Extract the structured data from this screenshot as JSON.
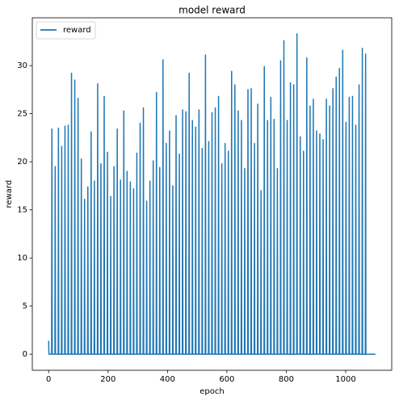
{
  "chart_data": {
    "type": "line",
    "title": "model reward",
    "xlabel": "epoch",
    "ylabel": "reward",
    "xlim": [
      -55,
      1155
    ],
    "xticks": [
      0,
      200,
      400,
      600,
      800,
      1000
    ],
    "ylim": [
      -1.67,
      34.97
    ],
    "yticks": [
      0,
      5,
      10,
      15,
      20,
      25,
      30
    ],
    "legend": "upper left",
    "series": [
      {
        "name": "reward",
        "color": "#1f77b4",
        "x": [
          0,
          1,
          10,
          11,
          12,
          21,
          22,
          23,
          32,
          33,
          34,
          43,
          44,
          45,
          54,
          55,
          56,
          65,
          66,
          67,
          76,
          77,
          78,
          87,
          88,
          89,
          98,
          99,
          100,
          109,
          110,
          111,
          120,
          121,
          122,
          131,
          132,
          133,
          142,
          143,
          144,
          153,
          154,
          155,
          164,
          165,
          166,
          175,
          176,
          177,
          186,
          187,
          188,
          197,
          198,
          199,
          208,
          209,
          210,
          219,
          220,
          221,
          230,
          231,
          232,
          241,
          242,
          243,
          252,
          253,
          254,
          263,
          264,
          265,
          274,
          275,
          276,
          285,
          286,
          287,
          296,
          297,
          298,
          307,
          308,
          309,
          318,
          319,
          320,
          329,
          330,
          331,
          340,
          341,
          342,
          351,
          352,
          353,
          362,
          363,
          364,
          373,
          374,
          375,
          384,
          385,
          386,
          395,
          396,
          397,
          406,
          407,
          408,
          417,
          418,
          419,
          428,
          429,
          430,
          439,
          440,
          441,
          450,
          451,
          452,
          461,
          462,
          463,
          472,
          473,
          474,
          483,
          484,
          485,
          494,
          495,
          496,
          505,
          506,
          507,
          516,
          517,
          518,
          527,
          528,
          529,
          538,
          539,
          540,
          549,
          550,
          551,
          560,
          561,
          562,
          571,
          572,
          573,
          582,
          583,
          584,
          593,
          594,
          595,
          604,
          605,
          606,
          615,
          616,
          617,
          626,
          627,
          628,
          637,
          638,
          639,
          648,
          649,
          650,
          659,
          660,
          661,
          670,
          671,
          672,
          681,
          682,
          683,
          692,
          693,
          694,
          703,
          704,
          705,
          714,
          715,
          716,
          725,
          726,
          727,
          736,
          737,
          738,
          747,
          748,
          749,
          758,
          759,
          760,
          769,
          770,
          771,
          780,
          781,
          782,
          791,
          792,
          793,
          802,
          803,
          804,
          813,
          814,
          815,
          824,
          825,
          826,
          835,
          836,
          837,
          846,
          847,
          848,
          857,
          858,
          859,
          868,
          869,
          870,
          879,
          880,
          881,
          890,
          891,
          892,
          901,
          902,
          903,
          912,
          913,
          914,
          923,
          924,
          925,
          934,
          935,
          936,
          945,
          946,
          947,
          956,
          957,
          958,
          967,
          968,
          969,
          978,
          979,
          980,
          989,
          990,
          991,
          1000,
          1001,
          1002,
          1011,
          1012,
          1013,
          1022,
          1023,
          1024,
          1033,
          1034,
          1035,
          1044,
          1045,
          1046,
          1055,
          1056,
          1057,
          1066,
          1067,
          1068,
          1100
        ],
        "values": [
          1.4,
          0,
          0,
          23.4,
          0,
          0,
          19.5,
          0,
          0,
          23.5,
          0,
          0,
          21.6,
          0,
          0,
          23.7,
          0,
          0,
          23.8,
          0,
          0,
          29.2,
          0,
          0,
          28.5,
          0,
          0,
          26.6,
          0,
          0,
          20.3,
          0,
          0,
          16.1,
          0,
          0,
          17.4,
          0,
          0,
          23.1,
          0,
          0,
          18.0,
          0,
          0,
          28.1,
          0,
          0,
          19.8,
          0,
          0,
          26.8,
          0,
          0,
          21.0,
          0,
          0,
          16.4,
          0,
          0,
          19.5,
          0,
          0,
          23.4,
          0,
          0,
          18.1,
          0,
          0,
          25.3,
          0,
          0,
          19.0,
          0,
          0,
          17.9,
          0,
          0,
          17.2,
          0,
          0,
          20.9,
          0,
          0,
          24.0,
          0,
          0,
          25.6,
          0,
          0,
          15.9,
          0,
          0,
          18.0,
          0,
          0,
          20.1,
          0,
          0,
          27.2,
          0,
          0,
          19.4,
          0,
          0,
          30.6,
          0,
          0,
          21.9,
          0,
          0,
          23.2,
          0,
          0,
          17.5,
          0,
          0,
          24.8,
          0,
          0,
          20.8,
          0,
          0,
          25.4,
          0,
          0,
          25.2,
          0,
          0,
          29.2,
          0,
          0,
          24.3,
          0,
          0,
          23.6,
          0,
          0,
          25.4,
          0,
          0,
          21.4,
          0,
          0,
          31.1,
          0,
          0,
          22.1,
          0,
          0,
          25.1,
          0,
          0,
          25.6,
          0,
          0,
          26.8,
          0,
          0,
          19.8,
          0,
          0,
          21.9,
          0,
          0,
          21.1,
          0,
          0,
          29.4,
          0,
          0,
          28.0,
          0,
          0,
          25.3,
          0,
          0,
          24.3,
          0,
          0,
          19.3,
          0,
          0,
          27.5,
          0,
          0,
          27.6,
          0,
          0,
          21.9,
          0,
          0,
          26.0,
          0,
          0,
          17.0,
          0,
          0,
          29.9,
          0,
          0,
          24.3,
          0,
          0,
          26.7,
          0,
          0,
          24.4,
          0,
          0,
          19.3,
          0,
          0,
          30.5,
          0,
          0,
          32.6,
          0,
          0,
          24.3,
          0,
          0,
          28.2,
          0,
          0,
          28.0,
          0,
          0,
          33.3,
          0,
          0,
          22.6,
          0,
          0,
          21.1,
          0,
          0,
          30.8,
          0,
          0,
          25.8,
          0,
          0,
          26.5,
          0,
          0,
          23.2,
          0,
          0,
          22.9,
          0,
          0,
          22.3,
          0,
          0,
          26.5,
          0,
          0,
          25.8,
          0,
          0,
          27.6,
          0,
          0,
          28.8,
          0,
          0,
          29.7,
          0,
          0,
          31.6,
          0,
          0,
          24.1,
          0,
          0,
          26.7,
          0,
          0,
          26.8,
          0,
          0,
          23.8,
          0,
          0,
          28.0,
          0,
          0,
          31.8,
          0,
          0,
          31.2,
          0,
          0
        ]
      }
    ]
  }
}
